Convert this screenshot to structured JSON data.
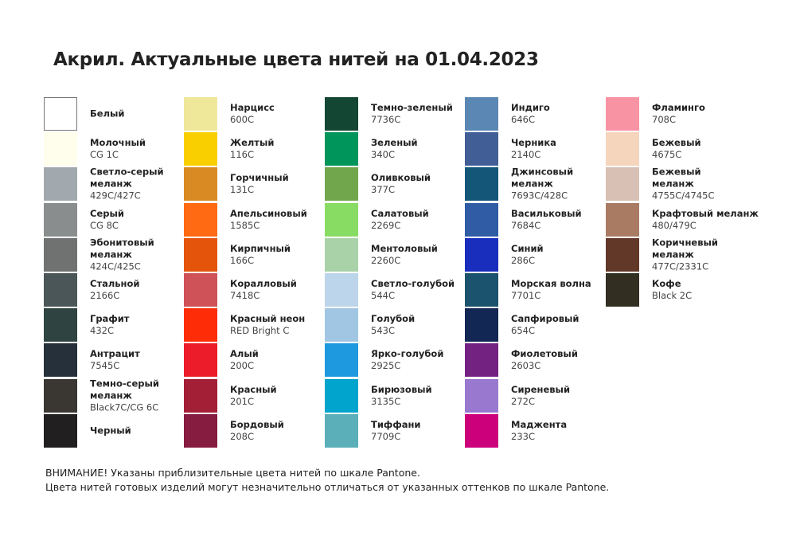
{
  "title": "Акрил. Актуальные цвета нитей на 01.04.2023",
  "columns": [
    [
      {
        "name": "Белый",
        "code": "",
        "color": "#ffffff"
      },
      {
        "name": "Молочный",
        "code": "CG 1C",
        "color": "#fffdec"
      },
      {
        "name": "Светло-серый\nмеланж",
        "code": "429C/427C",
        "color": "#a2a9ae"
      },
      {
        "name": "Серый",
        "code": "CG 8C",
        "color": "#8a8d8e"
      },
      {
        "name": "Эбонитовый\nмеланж",
        "code": "424C/425C",
        "color": "#6f7270"
      },
      {
        "name": "Стальной",
        "code": "2166C",
        "color": "#4b5659"
      },
      {
        "name": "Графит",
        "code": "432C",
        "color": "#2f4440"
      },
      {
        "name": "Антрацит",
        "code": "7545C",
        "color": "#26303a"
      },
      {
        "name": "Темно-серый\nмеланж",
        "code": "Black7C/CG 6C",
        "color": "#3a3733"
      },
      {
        "name": "Черный",
        "code": "",
        "color": "#221f20"
      }
    ],
    [
      {
        "name": "Нарцисс",
        "code": "600C",
        "color": "#efe79a"
      },
      {
        "name": "Желтый",
        "code": "116C",
        "color": "#f9cf00"
      },
      {
        "name": "Горчичный",
        "code": "131C",
        "color": "#d98a23"
      },
      {
        "name": "Апельсиновый",
        "code": "1585C",
        "color": "#ff6a13"
      },
      {
        "name": "Кирпичный",
        "code": "166C",
        "color": "#e4550b"
      },
      {
        "name": "Коралловый",
        "code": "7418C",
        "color": "#cf5259"
      },
      {
        "name": "Красный неон",
        "code": "RED Bright C",
        "color": "#ff2d07"
      },
      {
        "name": "Алый",
        "code": "200C",
        "color": "#ec1c2b"
      },
      {
        "name": "Красный",
        "code": "201C",
        "color": "#a31f35"
      },
      {
        "name": "Бордовый",
        "code": "208C",
        "color": "#861c3f"
      }
    ],
    [
      {
        "name": "Темно-зеленый",
        "code": "7736C",
        "color": "#144634"
      },
      {
        "name": "Зеленый",
        "code": "340C",
        "color": "#00955a"
      },
      {
        "name": "Оливковый",
        "code": "377C",
        "color": "#72a64d"
      },
      {
        "name": "Салатовый",
        "code": "2269C",
        "color": "#89dc63"
      },
      {
        "name": "Ментоловый",
        "code": "2260C",
        "color": "#aad2a8"
      },
      {
        "name": "Светло-голубой",
        "code": "544C",
        "color": "#bcd5ea"
      },
      {
        "name": "Голубой",
        "code": "543C",
        "color": "#a1c6e3"
      },
      {
        "name": "Ярко-голубой",
        "code": "2925C",
        "color": "#1e98de"
      },
      {
        "name": "Бирюзовый",
        "code": "3135C",
        "color": "#00a4cc"
      },
      {
        "name": "Тиффани",
        "code": "7709C",
        "color": "#5aafb8"
      }
    ],
    [
      {
        "name": "Индиго",
        "code": "646C",
        "color": "#5a87b3"
      },
      {
        "name": "Черника",
        "code": "2140C",
        "color": "#415f96"
      },
      {
        "name": "Джинсовый\nмеланж",
        "code": "7693C/428C",
        "color": "#135677"
      },
      {
        "name": "Васильковый",
        "code": "7684C",
        "color": "#2f5ca4"
      },
      {
        "name": "Синий",
        "code": "286C",
        "color": "#1a2ebd"
      },
      {
        "name": "Морская волна",
        "code": "7701C",
        "color": "#1b526d"
      },
      {
        "name": "Сапфировый",
        "code": "654C",
        "color": "#132755"
      },
      {
        "name": "Фиолетовый",
        "code": "2603C",
        "color": "#742282"
      },
      {
        "name": "Сиреневый",
        "code": "272C",
        "color": "#9879cf"
      },
      {
        "name": "Маджента",
        "code": "233C",
        "color": "#cb007a"
      }
    ],
    [
      {
        "name": "Фламинго",
        "code": "708C",
        "color": "#f893a3"
      },
      {
        "name": "Бежевый",
        "code": "4675C",
        "color": "#f5d5bc"
      },
      {
        "name": "Бежевый\nмеланж",
        "code": "4755C/4745C",
        "color": "#d8c0b4"
      },
      {
        "name": "Крафтовый меланж",
        "code": "480/479C",
        "color": "#aa7b63"
      },
      {
        "name": "Коричневый\nмеланж",
        "code": "477C/2331C",
        "color": "#623829"
      },
      {
        "name": "Кофе",
        "code": "Black 2C",
        "color": "#322e21"
      }
    ]
  ],
  "footer": {
    "line1": "ВНИМАНИЕ! Указаны приблизительные цвета нитей по шкале Pantone.",
    "line2": "Цвета нитей готовых изделий могут незначительно отличаться от указанных оттенков по шкале Pantone."
  }
}
